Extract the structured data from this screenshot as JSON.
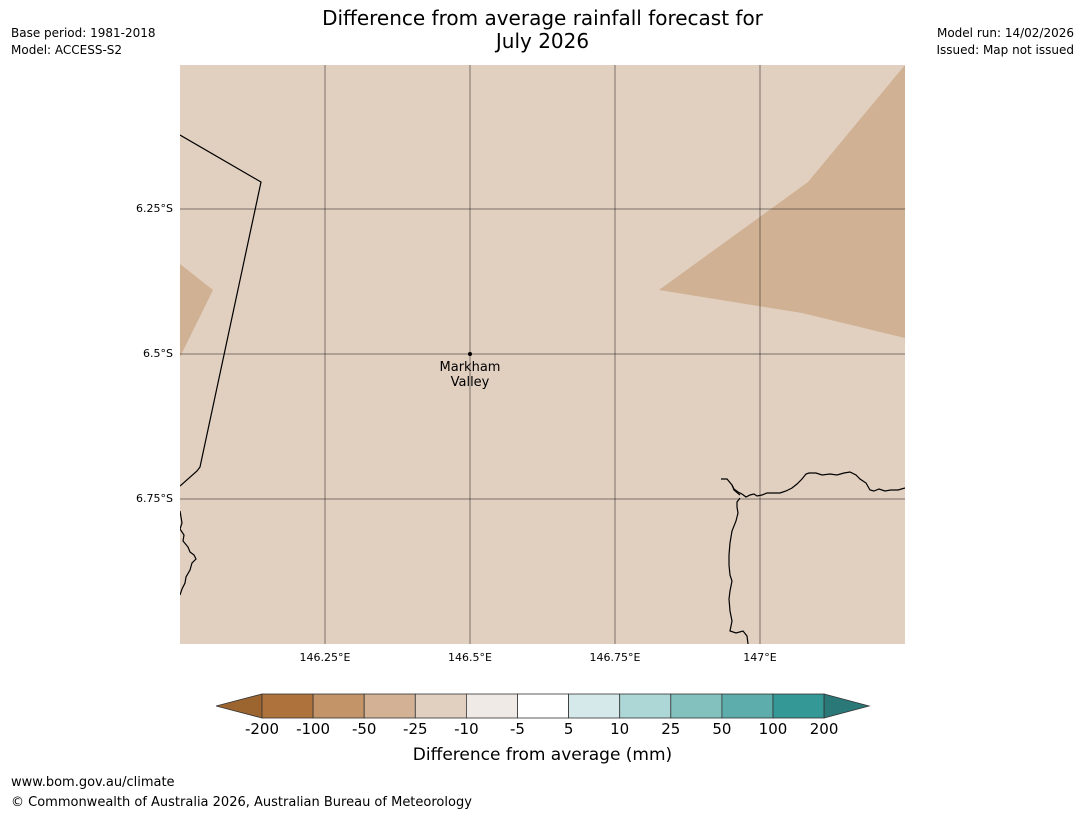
{
  "header": {
    "title_line1": "Difference from average rainfall forecast for",
    "title_line2": "July 2026",
    "base_period": "Base period: 1981-2018",
    "model": "Model: ACCESS-S2",
    "model_run": "Model run: 14/02/2026",
    "issued": "Issued: Map not issued"
  },
  "map": {
    "lat_labels": [
      "6.25°S",
      "6.5°S",
      "6.75°S"
    ],
    "lon_labels": [
      "146.25°E",
      "146.5°E",
      "146.75°E",
      "147°E"
    ],
    "place": {
      "line1": "Markham",
      "line2": "Valley"
    },
    "background_color": "#e1cfbf",
    "anomaly_color": "#d0b194",
    "land_outline_color": "#000000"
  },
  "colorbar": {
    "ticks": [
      "-200",
      "-100",
      "-50",
      "-25",
      "-10",
      "-5",
      "5",
      "10",
      "25",
      "50",
      "100",
      "200"
    ],
    "colors": [
      "#9c6530",
      "#ae733c",
      "#c39468",
      "#d2b194",
      "#e1cfbf",
      "#efeae6",
      "#ffffff",
      "#d6e9ea",
      "#add6d6",
      "#82c1be",
      "#5cadab",
      "#349896",
      "#2a7978"
    ],
    "label": "Difference from average (mm)"
  },
  "footer": {
    "url": "www.bom.gov.au/climate",
    "copyright": "© Commonwealth of Australia 2026, Australian Bureau of Meteorology"
  }
}
